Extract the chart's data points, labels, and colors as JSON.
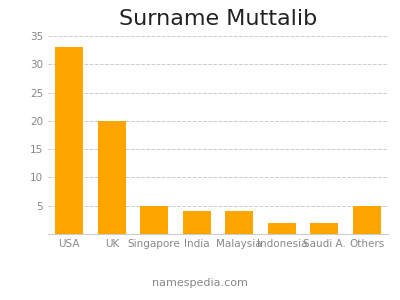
{
  "title": "Surname Muttalib",
  "categories": [
    "USA",
    "UK",
    "Singapore",
    "India",
    "Malaysia",
    "Indonesia",
    "Saudi A.",
    "Others"
  ],
  "values": [
    33,
    20,
    5,
    4,
    4,
    2,
    2,
    5
  ],
  "bar_color": "#FFA500",
  "ylim": [
    0,
    35
  ],
  "yticks": [
    5,
    10,
    15,
    20,
    25,
    30,
    35
  ],
  "ytick_labels": [
    "5",
    "10",
    "15",
    "20",
    "25",
    "30",
    "35"
  ],
  "grid_color": "#cccccc",
  "background_color": "#ffffff",
  "footer_text": "namespedia.com",
  "title_fontsize": 16,
  "tick_fontsize": 7.5,
  "footer_fontsize": 8
}
